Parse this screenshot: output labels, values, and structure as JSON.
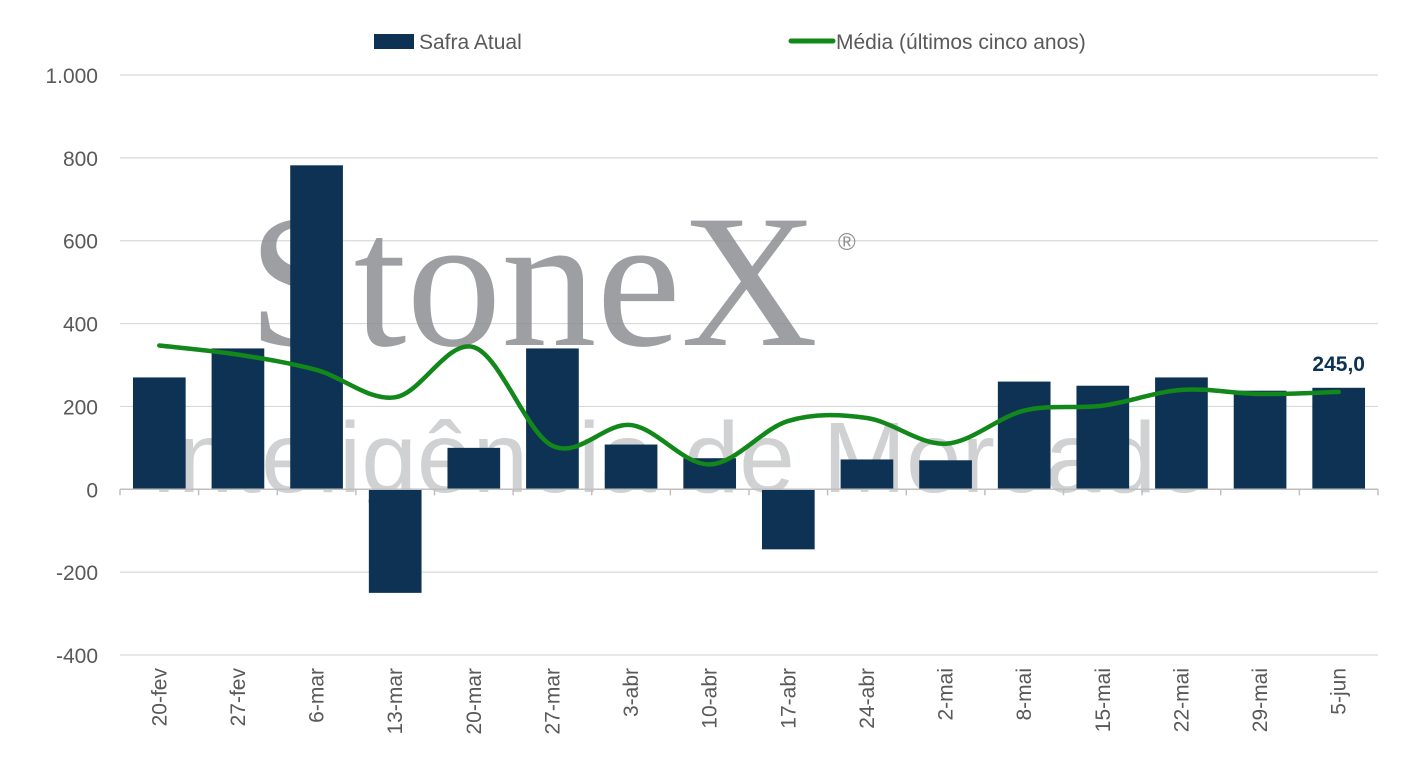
{
  "chart_data": {
    "type": "bar",
    "title": "",
    "xlabel": "",
    "ylabel": "",
    "categories": [
      "20-fev",
      "27-fev",
      "6-mar",
      "13-mar",
      "20-mar",
      "27-mar",
      "3-abr",
      "10-abr",
      "17-abr",
      "24-abr",
      "2-mai",
      "8-mai",
      "15-mai",
      "22-mai",
      "29-mai",
      "5-jun"
    ],
    "ylim": [
      -400,
      1000
    ],
    "yticks": [
      1000,
      800,
      600,
      400,
      200,
      0,
      -200,
      -400
    ],
    "ytick_labels": [
      "1.000",
      "800",
      "600",
      "400",
      "200",
      "0",
      "-200",
      "-400"
    ],
    "grid": true,
    "legend_position": "top",
    "series": [
      {
        "name": "Safra Atual",
        "type": "bar",
        "color": "#0d3254",
        "values": [
          270,
          340,
          782,
          -250,
          100,
          340,
          108,
          75,
          -145,
          72,
          70,
          260,
          250,
          270,
          238,
          245
        ]
      },
      {
        "name": "Média (últimos cinco anos)",
        "type": "line",
        "smooth": true,
        "color": "#12871a",
        "values": [
          347,
          325,
          288,
          222,
          343,
          105,
          155,
          60,
          165,
          172,
          110,
          190,
          202,
          240,
          230,
          235
        ]
      }
    ],
    "annotations": [
      {
        "text": "245,0",
        "category": "5-jun",
        "value": 245,
        "color": "#0d3254"
      }
    ]
  },
  "watermark": {
    "brand": "StoneX",
    "registered": "®",
    "subtitle": "Inteligência de Mercado"
  }
}
